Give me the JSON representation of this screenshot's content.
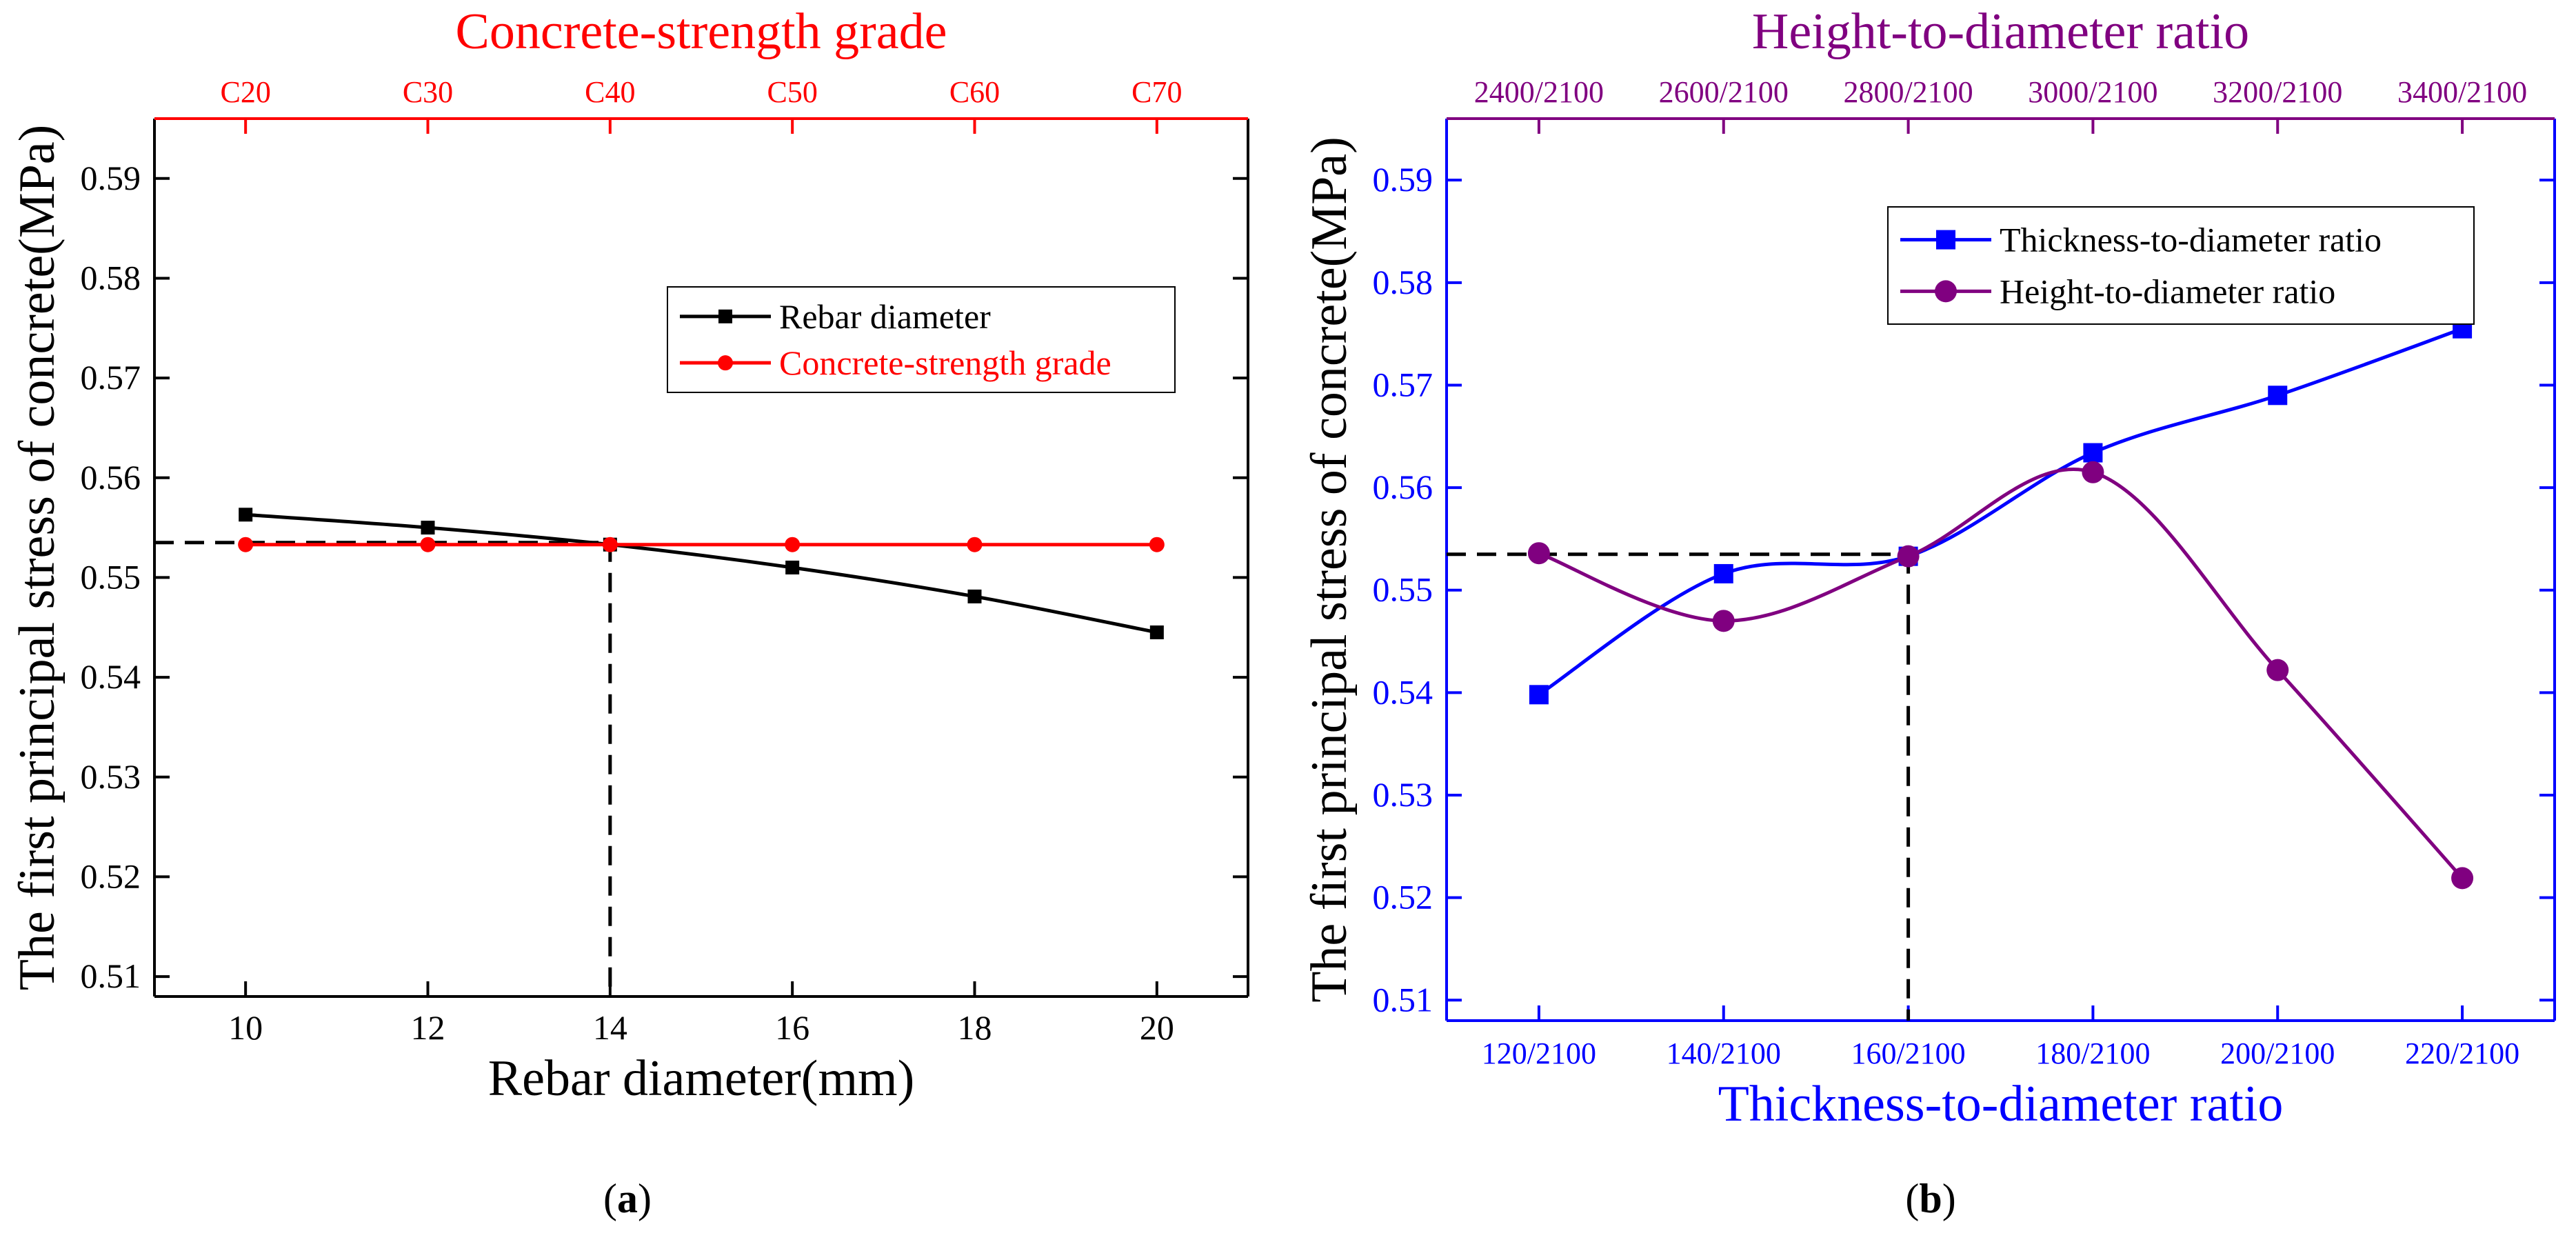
{
  "chart_data": [
    {
      "id": "a",
      "type": "line",
      "panel_label": "a",
      "xlabel": "Rebar diameter(mm)",
      "ylabel": "The first principal stress of concrete(MPa)",
      "top_xlabel": "Concrete-strength grade",
      "x_range": [
        9,
        21
      ],
      "ylim": [
        0.508,
        0.596
      ],
      "x_ticks": [
        10,
        12,
        14,
        16,
        18,
        20
      ],
      "top_ticks": [
        "C20",
        "C30",
        "C40",
        "C50",
        "C60",
        "C70"
      ],
      "y_ticks": [
        0.51,
        0.52,
        0.53,
        0.54,
        0.55,
        0.56,
        0.57,
        0.58,
        0.59
      ],
      "series": [
        {
          "name": "Rebar diameter",
          "color": "#000000",
          "marker": "square",
          "x": [
            10,
            12,
            14,
            16,
            18,
            20
          ],
          "values": [
            0.5563,
            0.555,
            0.5533,
            0.551,
            0.5481,
            0.5445
          ]
        },
        {
          "name": "Concrete-strength grade",
          "color": "#ff0000",
          "marker": "circle",
          "x": [
            10,
            12,
            14,
            16,
            18,
            20
          ],
          "values": [
            0.5533,
            0.5533,
            0.5533,
            0.5533,
            0.5533,
            0.5533
          ]
        }
      ],
      "reference": {
        "x": 14,
        "y": 0.5535
      },
      "colors": {
        "bottom_axis": "#000000",
        "top_axis": "#ff0000"
      }
    },
    {
      "id": "b",
      "type": "line",
      "panel_label": "b",
      "xlabel": "Thickness-to-diameter ratio",
      "ylabel": "The first principal stress of concrete(MPa)",
      "top_xlabel": "Height-to-diameter ratio",
      "x_range": [
        -0.5,
        5.5
      ],
      "ylim": [
        0.508,
        0.596
      ],
      "x_ticks": [
        "120/2100",
        "140/2100",
        "160/2100",
        "180/2100",
        "200/2100",
        "220/2100"
      ],
      "top_ticks": [
        "2400/2100",
        "2600/2100",
        "2800/2100",
        "3000/2100",
        "3200/2100",
        "3400/2100"
      ],
      "y_ticks": [
        0.51,
        0.52,
        0.53,
        0.54,
        0.55,
        0.56,
        0.57,
        0.58,
        0.59
      ],
      "series": [
        {
          "name": "Thickness-to-diameter ratio",
          "color": "#0000ff",
          "marker": "square",
          "x": [
            0,
            1,
            2,
            3,
            4,
            5
          ],
          "values": [
            0.5398,
            0.5516,
            0.5533,
            0.5634,
            0.569,
            0.5755
          ]
        },
        {
          "name": "Height-to-diameter ratio",
          "color": "#800080",
          "marker": "circle",
          "x": [
            0,
            1,
            2,
            3,
            4,
            5
          ],
          "values": [
            0.5536,
            0.547,
            0.5533,
            0.5615,
            0.5422,
            0.5219
          ]
        }
      ],
      "reference": {
        "x": 2,
        "y": 0.5535
      },
      "colors": {
        "bottom_axis": "#0000ff",
        "top_axis": "#800080"
      }
    }
  ]
}
